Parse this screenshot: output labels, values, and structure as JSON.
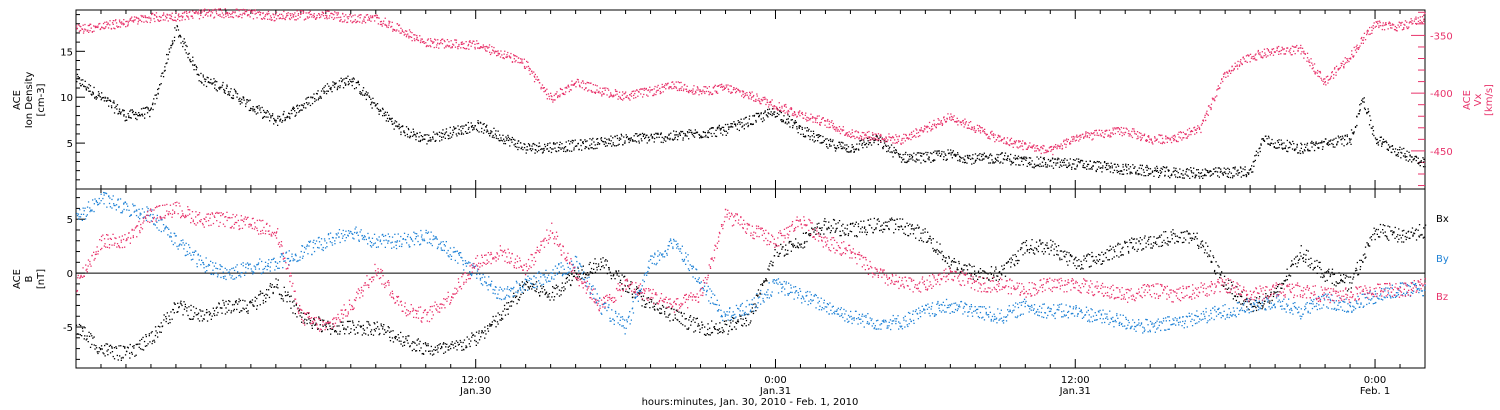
{
  "colors": {
    "black": "#000000",
    "red": "#e8336b",
    "blue": "#1f82d6",
    "frame": "#000000"
  },
  "xaxis": {
    "title": "hours:minutes, Jan. 30, 2010 - Feb. 1, 2010",
    "range_hours": [
      -4,
      50
    ],
    "minor_step_hours": 1,
    "major_ticks": [
      {
        "t": 12,
        "time": "12:00",
        "date": "Jan.30"
      },
      {
        "t": 24,
        "time": "0:00",
        "date": "Jan.31"
      },
      {
        "t": 36,
        "time": "12:00",
        "date": "Jan.31"
      },
      {
        "t": 48,
        "time": "0:00",
        "date": "Feb. 1"
      }
    ]
  },
  "panel_top": {
    "ylabel_left": [
      "ACE",
      "Ion Density",
      "[cm-3]"
    ],
    "ylabel_right": [
      "ACE",
      "Vx",
      "[km/s]"
    ]
  },
  "panel_bottom": {
    "ylabel_left": [
      "ACE",
      "B",
      "[nT]"
    ],
    "legend": [
      {
        "label": "Bx",
        "color": "black"
      },
      {
        "label": "By",
        "color": "blue"
      },
      {
        "label": "Bz",
        "color": "red"
      }
    ]
  },
  "chart_data": [
    {
      "type": "scatter",
      "title": "",
      "xlabel": "hours:minutes, Jan. 30, 2010 - Feb. 1, 2010",
      "ylabel": "ACE Ion Density [cm-3]",
      "y2label": "ACE Vx [km/s]",
      "ylim": [
        0,
        19.5
      ],
      "y_ticks": [
        5,
        10,
        15
      ],
      "y2lim": [
        -483,
        -328
      ],
      "y2_ticks": [
        -350,
        -400,
        -450
      ],
      "x_units": "hours from 00:00 Jan. 30, 2010",
      "series": [
        {
          "name": "",
          "axis": "left",
          "color": "black",
          "x": [
            -4,
            -3,
            -2,
            -1,
            0,
            1,
            2,
            3,
            4,
            5,
            6,
            7,
            8,
            9,
            10,
            12,
            14,
            16,
            18,
            20,
            22,
            24,
            25,
            26,
            27,
            28,
            29,
            30,
            31,
            32,
            33,
            34,
            36,
            38,
            40,
            42,
            43,
            43.5,
            44,
            45,
            46,
            47,
            47.5,
            48,
            49,
            50
          ],
          "y": [
            12,
            10,
            8,
            8.5,
            17.5,
            12,
            11,
            9,
            7.5,
            9,
            11,
            12,
            9,
            6.5,
            5.5,
            7,
            4.5,
            4.8,
            5.5,
            5.8,
            6.5,
            8.5,
            6.5,
            5,
            4.5,
            5.5,
            3.5,
            3.5,
            3.8,
            3.3,
            3.5,
            3,
            2.8,
            2.2,
            1.8,
            1.8,
            2,
            5.5,
            5,
            4.5,
            5,
            5.5,
            10,
            5.5,
            4,
            3
          ]
        },
        {
          "name": "",
          "axis": "right",
          "color": "red",
          "x": [
            -4,
            -3,
            -2,
            -1,
            0,
            1,
            2,
            3,
            4,
            5,
            6,
            7,
            8,
            9,
            10,
            11,
            12,
            13,
            14,
            15,
            16,
            17,
            18,
            19,
            20,
            21,
            22,
            23,
            24,
            25,
            26,
            27,
            28,
            29,
            30,
            31,
            32,
            33,
            34,
            35,
            36,
            37,
            38,
            39,
            40,
            41,
            42,
            43,
            44,
            45,
            46,
            47,
            48,
            49,
            50
          ],
          "y": [
            -344,
            -342,
            -338,
            -334,
            -333,
            -331,
            -330,
            -331,
            -333,
            -332,
            -332,
            -335,
            -335,
            -345,
            -356,
            -357,
            -358,
            -365,
            -375,
            -405,
            -390,
            -398,
            -402,
            -398,
            -393,
            -398,
            -395,
            -402,
            -410,
            -418,
            -425,
            -435,
            -437,
            -440,
            -430,
            -420,
            -430,
            -440,
            -445,
            -450,
            -438,
            -435,
            -432,
            -440,
            -438,
            -430,
            -383,
            -368,
            -363,
            -362,
            -390,
            -367,
            -340,
            -342,
            -334
          ]
        }
      ]
    },
    {
      "type": "scatter",
      "title": "",
      "xlabel": "hours:minutes, Jan. 30, 2010 - Feb. 1, 2010",
      "ylabel": "ACE B [nT]",
      "ylim": [
        -8.8,
        7.8
      ],
      "y_ticks": [
        -5,
        0,
        5
      ],
      "zero_line": true,
      "x_units": "hours from 00:00 Jan. 30, 2010",
      "series": [
        {
          "name": "Bx",
          "color": "black",
          "x": [
            -4,
            -3,
            -2,
            -1,
            0,
            1,
            2,
            3,
            4,
            5,
            6,
            7,
            8,
            9,
            10,
            11,
            12,
            13,
            14,
            15,
            16,
            17,
            18,
            19,
            20,
            21,
            22,
            23,
            24,
            25,
            26,
            27,
            28,
            29,
            30,
            31,
            32,
            33,
            34,
            35,
            36,
            37,
            38,
            39,
            40,
            41,
            42,
            43,
            44,
            45,
            46,
            47,
            48,
            49,
            50
          ],
          "y": [
            -5,
            -7,
            -7.5,
            -6,
            -3,
            -4,
            -3,
            -3,
            -1,
            -4,
            -5,
            -5,
            -5,
            -6,
            -7,
            -7,
            -6,
            -4,
            -1,
            -2,
            0,
            1,
            -1,
            -3,
            -4,
            -5,
            -5,
            -4,
            2,
            3,
            4.5,
            4,
            4.5,
            4.5,
            3.5,
            1,
            0,
            0,
            2.5,
            2.5,
            1,
            1.5,
            2.5,
            3,
            3.5,
            3,
            -1,
            -3,
            -2,
            2,
            0,
            -1,
            4,
            3.5,
            4
          ]
        },
        {
          "name": "By",
          "color": "blue",
          "x": [
            -4,
            -3,
            -2,
            -1,
            0,
            1,
            2,
            3,
            4,
            5,
            6,
            7,
            8,
            9,
            10,
            11,
            12,
            13,
            14,
            15,
            16,
            17,
            18,
            19,
            20,
            21,
            22,
            23,
            24,
            25,
            26,
            27,
            28,
            29,
            30,
            31,
            32,
            33,
            34,
            35,
            36,
            37,
            38,
            39,
            40,
            41,
            42,
            43,
            44,
            45,
            46,
            47,
            48,
            49,
            50
          ],
          "y": [
            5,
            7,
            6,
            5.5,
            3,
            1,
            0,
            0.5,
            1,
            2,
            3,
            4,
            3,
            3,
            3.5,
            2,
            0,
            -2,
            -1,
            0,
            1,
            -3,
            -5,
            1,
            3,
            -1,
            -4,
            -3,
            -1,
            -2,
            -3,
            -4,
            -4.5,
            -4.5,
            -3.5,
            -3,
            -3.5,
            -4,
            -3,
            -3.5,
            -3.5,
            -4,
            -4.5,
            -5,
            -4.5,
            -4,
            -3.5,
            -3,
            -2.5,
            -3.5,
            -2.5,
            -3,
            -2,
            -1.5,
            -1.5
          ]
        },
        {
          "name": "Bz",
          "color": "red",
          "x": [
            -4,
            -3,
            -2,
            -1,
            0,
            1,
            2,
            3,
            4,
            5,
            6,
            7,
            8,
            9,
            10,
            11,
            12,
            13,
            14,
            15,
            16,
            17,
            18,
            19,
            20,
            21,
            22,
            23,
            24,
            25,
            26,
            27,
            28,
            29,
            30,
            31,
            32,
            33,
            34,
            35,
            36,
            37,
            38,
            39,
            40,
            41,
            42,
            43,
            44,
            45,
            46,
            47,
            48,
            49,
            50
          ],
          "y": [
            -1,
            3,
            3,
            5.5,
            6,
            5,
            5,
            4.5,
            4,
            -4,
            -5,
            -3,
            0.5,
            -3,
            -4,
            -2,
            1,
            2,
            0.5,
            4,
            0,
            -3,
            -1,
            -2,
            -3,
            -2,
            5.5,
            4,
            3,
            5,
            3,
            2,
            0,
            -1,
            -1,
            0,
            -1,
            -1,
            -1.5,
            -1,
            -1,
            -1.5,
            -2,
            -1.5,
            -2,
            -1.5,
            -1,
            -2,
            -1.5,
            -1.5,
            -2,
            -2,
            -1.5,
            -1.5,
            -1
          ]
        }
      ]
    }
  ]
}
